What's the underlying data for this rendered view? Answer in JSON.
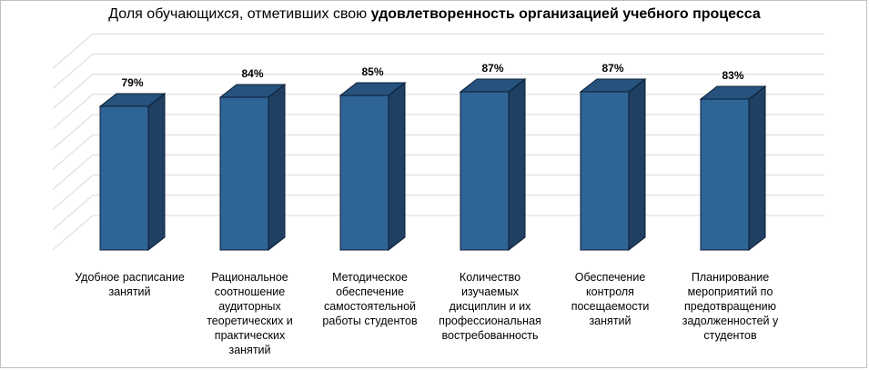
{
  "title": {
    "prefix": "Доля обучающихся, отметивших свою ",
    "emphasis": "удовлетворенность  организацией учебного процесса"
  },
  "chart_data": {
    "type": "bar",
    "categories": [
      "Удобное расписание занятий",
      "Рациональное соотношение аудиторных теоретических и практических занятий",
      "Методическое обеспечение самостоятельной работы студентов",
      "Количество изучаемых дисциплин и их профессиональная востребованность",
      "Обеспечение контроля посещаемости занятий",
      "Планирование мероприятий по предотвращению задолженностей у студентов"
    ],
    "values": [
      79,
      84,
      85,
      87,
      87,
      83
    ],
    "data_labels": [
      "79%",
      "84%",
      "85%",
      "87%",
      "87%",
      "83%"
    ],
    "unit": "%",
    "ylim": [
      0,
      100
    ],
    "grid": true,
    "legend": "none",
    "colors": {
      "front": "#2f6497",
      "side": "#1f3f63",
      "top": "#26527d",
      "edge": "#0b1d33",
      "grid": "#d9d9d9"
    }
  }
}
